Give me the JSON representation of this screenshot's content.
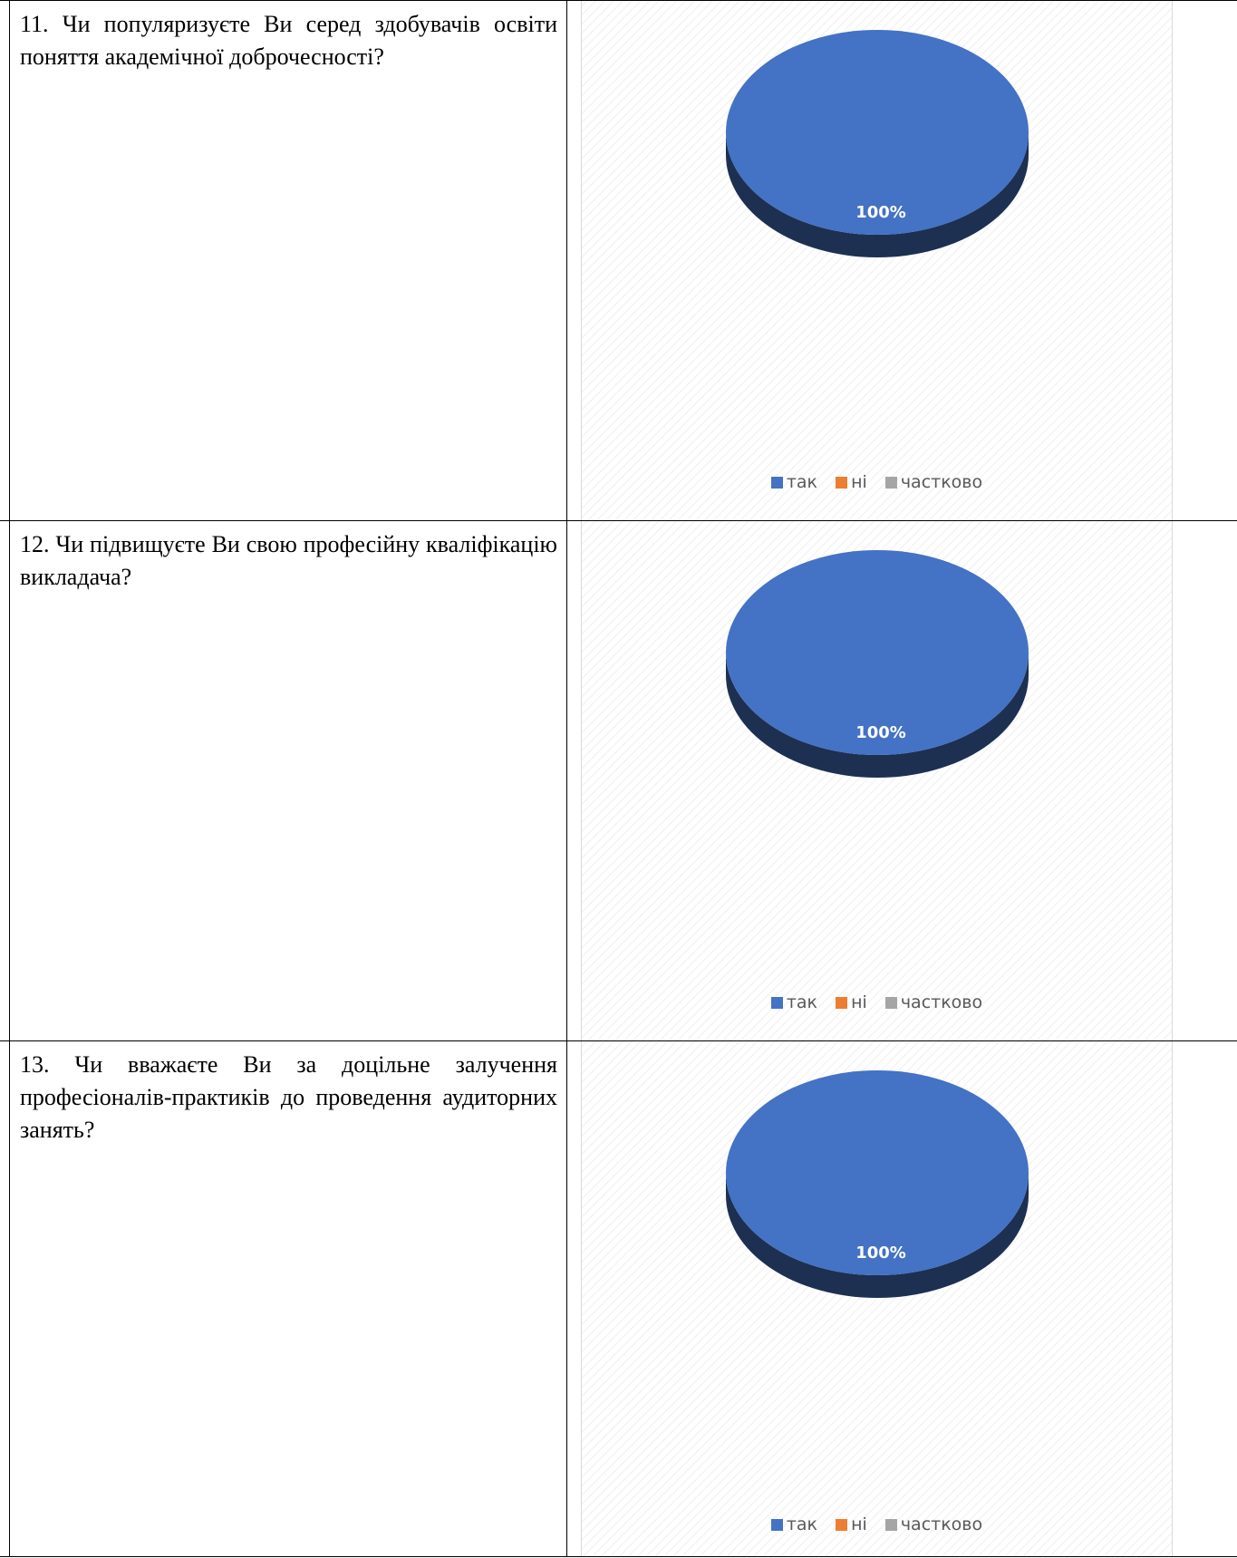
{
  "rows": [
    {
      "question": "11. Чи популяризуєте Ви серед здобувачів освіти поняття академічної доброчесності?",
      "slice_label": "100%"
    },
    {
      "question": "12. Чи підвищуєте Ви свою професійну кваліфікацію викладача?",
      "slice_label": "100%"
    },
    {
      "question": "13. Чи вважаєте Ви за доцільне залучення професіоналів-практиків до проведення аудиторних занять?",
      "slice_label": "100%"
    }
  ],
  "legend": [
    {
      "label": "так",
      "color": "#4472c4"
    },
    {
      "label": "ні",
      "color": "#ed7d31"
    },
    {
      "label": "частково",
      "color": "#a5a5a5"
    }
  ],
  "chart_data": [
    {
      "type": "pie",
      "categories": [
        "так",
        "ні",
        "частково"
      ],
      "values": [
        100,
        0,
        0
      ],
      "data_labels": [
        "100%"
      ],
      "colors": [
        "#4472c4",
        "#ed7d31",
        "#a5a5a5"
      ],
      "legend_position": "bottom"
    },
    {
      "type": "pie",
      "categories": [
        "так",
        "ні",
        "частково"
      ],
      "values": [
        100,
        0,
        0
      ],
      "data_labels": [
        "100%"
      ],
      "colors": [
        "#4472c4",
        "#ed7d31",
        "#a5a5a5"
      ],
      "legend_position": "bottom"
    },
    {
      "type": "pie",
      "categories": [
        "так",
        "ні",
        "частково"
      ],
      "values": [
        100,
        0,
        0
      ],
      "data_labels": [
        "100%"
      ],
      "colors": [
        "#4472c4",
        "#ed7d31",
        "#a5a5a5"
      ],
      "legend_position": "bottom"
    }
  ]
}
